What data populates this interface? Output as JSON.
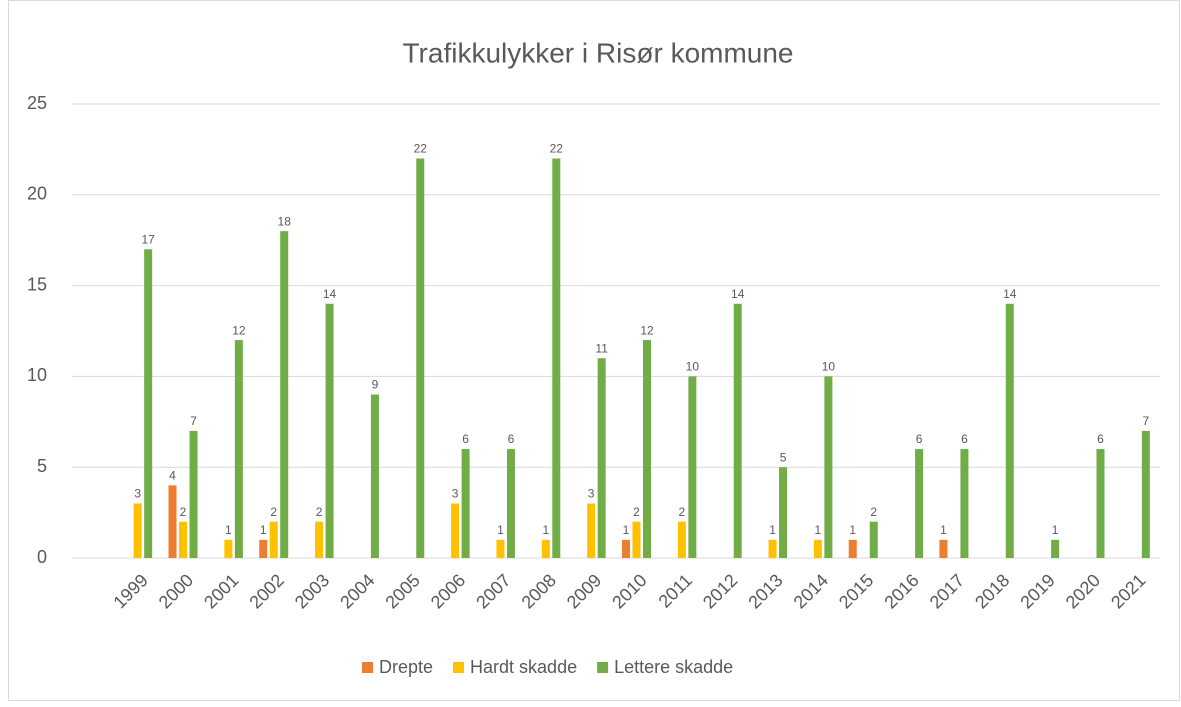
{
  "chart_data": {
    "type": "bar",
    "title": "Trafikkulykker i Risør kommune",
    "categories": [
      "1999",
      "2000",
      "2001",
      "2002",
      "2003",
      "2004",
      "2005",
      "2006",
      "2007",
      "2008",
      "2009",
      "2010",
      "2011",
      "2012",
      "2013",
      "2014",
      "2015",
      "2016",
      "2017",
      "2018",
      "2019",
      "2020",
      "2021"
    ],
    "series": [
      {
        "name": "Drepte",
        "color": "#ed7d31",
        "values": [
          null,
          4,
          null,
          1,
          null,
          null,
          null,
          null,
          null,
          null,
          null,
          1,
          null,
          null,
          null,
          null,
          1,
          null,
          1,
          null,
          null,
          null,
          null
        ]
      },
      {
        "name": "Hardt skadde",
        "color": "#ffc000",
        "values": [
          3,
          2,
          1,
          2,
          2,
          null,
          null,
          3,
          1,
          1,
          3,
          2,
          2,
          null,
          1,
          1,
          null,
          null,
          null,
          null,
          null,
          null,
          null
        ]
      },
      {
        "name": "Lettere skadde",
        "color": "#70ad47",
        "values": [
          17,
          7,
          12,
          18,
          14,
          9,
          22,
          6,
          6,
          22,
          11,
          12,
          10,
          14,
          5,
          10,
          2,
          6,
          6,
          14,
          1,
          6,
          7
        ]
      }
    ],
    "ylim": [
      0,
      25
    ],
    "yticks": [
      0,
      5,
      10,
      15,
      20,
      25
    ],
    "grid": true,
    "legend": "bottom"
  }
}
